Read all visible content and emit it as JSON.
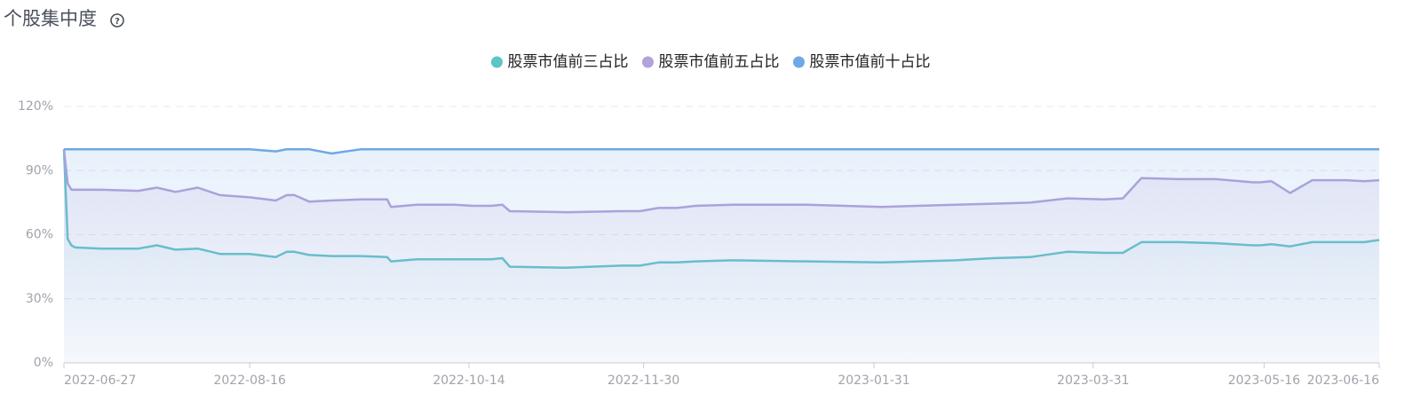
{
  "chart_data": {
    "type": "line",
    "title": "个股集中度",
    "area": true,
    "grid": true,
    "legend": "top",
    "x": [
      "2022-06-27",
      "2022-06-28",
      "2022-06-29",
      "2022-06-30",
      "2022-07-07",
      "2022-07-17",
      "2022-07-22",
      "2022-07-27",
      "2022-08-02",
      "2022-08-08",
      "2022-08-16",
      "2022-08-23",
      "2022-08-26",
      "2022-08-28",
      "2022-09-01",
      "2022-09-07",
      "2022-09-15",
      "2022-09-22",
      "2022-09-23",
      "2022-09-30",
      "2022-10-10",
      "2022-10-15",
      "2022-10-20",
      "2022-10-23",
      "2022-10-25",
      "2022-11-09",
      "2022-11-24",
      "2022-11-29",
      "2022-12-04",
      "2022-12-09",
      "2022-12-14",
      "2022-12-24",
      "2023-01-13",
      "2023-02-02",
      "2023-02-22",
      "2023-03-04",
      "2023-03-14",
      "2023-03-24",
      "2023-04-03",
      "2023-04-08",
      "2023-04-13",
      "2023-04-23",
      "2023-05-03",
      "2023-05-13",
      "2023-05-15",
      "2023-05-18",
      "2023-05-23",
      "2023-05-29",
      "2023-06-02",
      "2023-06-07",
      "2023-06-12",
      "2023-06-16"
    ],
    "series": [
      {
        "name": "股票市值前三占比",
        "color": "#5ec4c6",
        "values": [
          100,
          58,
          55,
          54,
          53.5,
          53.5,
          55,
          53,
          53.5,
          51,
          51,
          49.5,
          52,
          52,
          50.5,
          50,
          50,
          49.5,
          47.5,
          48.5,
          48.5,
          48.5,
          48.5,
          49,
          45,
          44.5,
          45.5,
          45.5,
          47,
          47,
          47.5,
          48,
          47.5,
          47,
          48,
          49,
          49.5,
          52,
          51.5,
          51.5,
          56.5,
          56.5,
          56,
          55,
          55,
          55.5,
          54.5,
          56.5,
          56.5,
          56.5,
          56.5,
          57.5
        ]
      },
      {
        "name": "股票市值前五占比",
        "color": "#b3a1da",
        "values": [
          100,
          84,
          81,
          81,
          81,
          80.5,
          82,
          80,
          82,
          78.5,
          77.5,
          76,
          78.5,
          78.5,
          75.5,
          76,
          76.5,
          76.5,
          73,
          74,
          74,
          73.5,
          73.5,
          74,
          71,
          70.5,
          71,
          71,
          72.5,
          72.5,
          73.5,
          74,
          74,
          73,
          74,
          74.5,
          75,
          77,
          76.5,
          77,
          86.5,
          86,
          86,
          84.5,
          84.5,
          85,
          79.5,
          85.5,
          85.5,
          85.5,
          85,
          85.5
        ]
      },
      {
        "name": "股票市值前十占比",
        "color": "#6fa8e6",
        "values": [
          100,
          100,
          100,
          100,
          100,
          100,
          100,
          100,
          100,
          100,
          100,
          99,
          100,
          100,
          100,
          98,
          100,
          100,
          100,
          100,
          100,
          100,
          100,
          100,
          100,
          100,
          100,
          100,
          100,
          100,
          100,
          100,
          100,
          100,
          100,
          100,
          100,
          100,
          100,
          100,
          100,
          100,
          100,
          100,
          100,
          100,
          100,
          100,
          100,
          100,
          100,
          100
        ]
      }
    ],
    "xlim": [
      "2022-06-27",
      "2023-06-16"
    ],
    "xticks": [
      "2022-06-27",
      "2022-08-16",
      "2022-10-14",
      "2022-11-30",
      "2023-01-31",
      "2023-03-31",
      "2023-05-16",
      "2023-06-16"
    ],
    "ylim": [
      0,
      120
    ],
    "yticks": [
      {
        "value": 0,
        "label": "0%"
      },
      {
        "value": 30,
        "label": "30%"
      },
      {
        "value": 60,
        "label": "60%"
      },
      {
        "value": 90,
        "label": "90%"
      },
      {
        "value": 120,
        "label": "120%"
      }
    ]
  }
}
